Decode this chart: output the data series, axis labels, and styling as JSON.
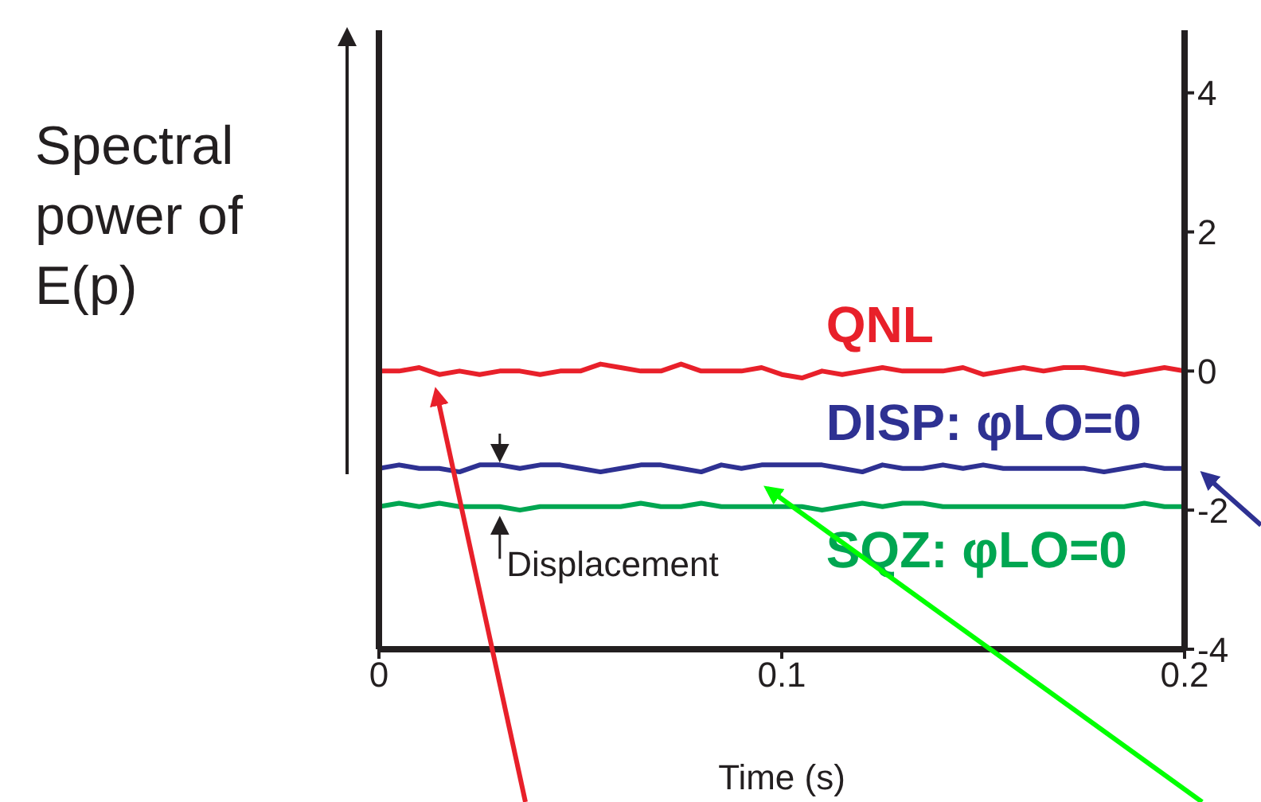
{
  "chart_data": {
    "type": "line",
    "ylabel": "Spectral power of E(p)",
    "xlabel": "Time (s)",
    "x": [
      0,
      0.005,
      0.01,
      0.015,
      0.02,
      0.025,
      0.03,
      0.035,
      0.04,
      0.045,
      0.05,
      0.055,
      0.06,
      0.065,
      0.07,
      0.075,
      0.08,
      0.085,
      0.09,
      0.095,
      0.1,
      0.105,
      0.11,
      0.115,
      0.12,
      0.125,
      0.13,
      0.135,
      0.14,
      0.145,
      0.15,
      0.155,
      0.16,
      0.165,
      0.17,
      0.175,
      0.18,
      0.185,
      0.19,
      0.195,
      0.2
    ],
    "series": [
      {
        "name": "QNL",
        "color": "#e8202a",
        "values": [
          0,
          0,
          0.05,
          -0.05,
          0,
          -0.05,
          0,
          0,
          -0.05,
          0,
          0,
          0.1,
          0.05,
          0,
          0,
          0.1,
          0,
          0,
          0,
          0.05,
          -0.05,
          -0.1,
          0,
          -0.05,
          0,
          0.05,
          0,
          0,
          0,
          0.05,
          -0.05,
          0,
          0.05,
          0,
          0.05,
          0.05,
          0,
          -0.05,
          0,
          0.05,
          0
        ]
      },
      {
        "name": "DISP: φLO=0",
        "color": "#2e3192",
        "values": [
          -1.4,
          -1.35,
          -1.4,
          -1.4,
          -1.45,
          -1.35,
          -1.35,
          -1.4,
          -1.35,
          -1.35,
          -1.4,
          -1.45,
          -1.4,
          -1.35,
          -1.35,
          -1.4,
          -1.45,
          -1.35,
          -1.4,
          -1.35,
          -1.35,
          -1.35,
          -1.35,
          -1.4,
          -1.45,
          -1.35,
          -1.4,
          -1.4,
          -1.35,
          -1.4,
          -1.35,
          -1.4,
          -1.4,
          -1.4,
          -1.4,
          -1.4,
          -1.45,
          -1.4,
          -1.35,
          -1.4,
          -1.4
        ]
      },
      {
        "name": "SQZ: φLO=0",
        "color": "#00a651",
        "values": [
          -1.95,
          -1.9,
          -1.95,
          -1.9,
          -1.95,
          -1.95,
          -1.95,
          -2.0,
          -1.95,
          -1.95,
          -1.95,
          -1.95,
          -1.95,
          -1.9,
          -1.95,
          -1.95,
          -1.9,
          -1.95,
          -1.95,
          -1.95,
          -1.95,
          -1.95,
          -2.0,
          -1.95,
          -1.9,
          -1.95,
          -1.9,
          -1.9,
          -1.95,
          -1.95,
          -1.95,
          -1.95,
          -1.95,
          -1.95,
          -1.95,
          -1.95,
          -1.95,
          -1.95,
          -1.9,
          -1.95,
          -1.95
        ]
      }
    ],
    "annotations": [
      "Displacement"
    ],
    "xlim": [
      0,
      0.2
    ],
    "xticks": [
      0,
      0.1,
      0.2
    ],
    "ylim": [
      -4,
      4.9
    ],
    "yticks": [
      -4,
      -2,
      0,
      2,
      4
    ],
    "grid": false,
    "legend": false,
    "marker": "none",
    "line_style": "solid"
  }
}
